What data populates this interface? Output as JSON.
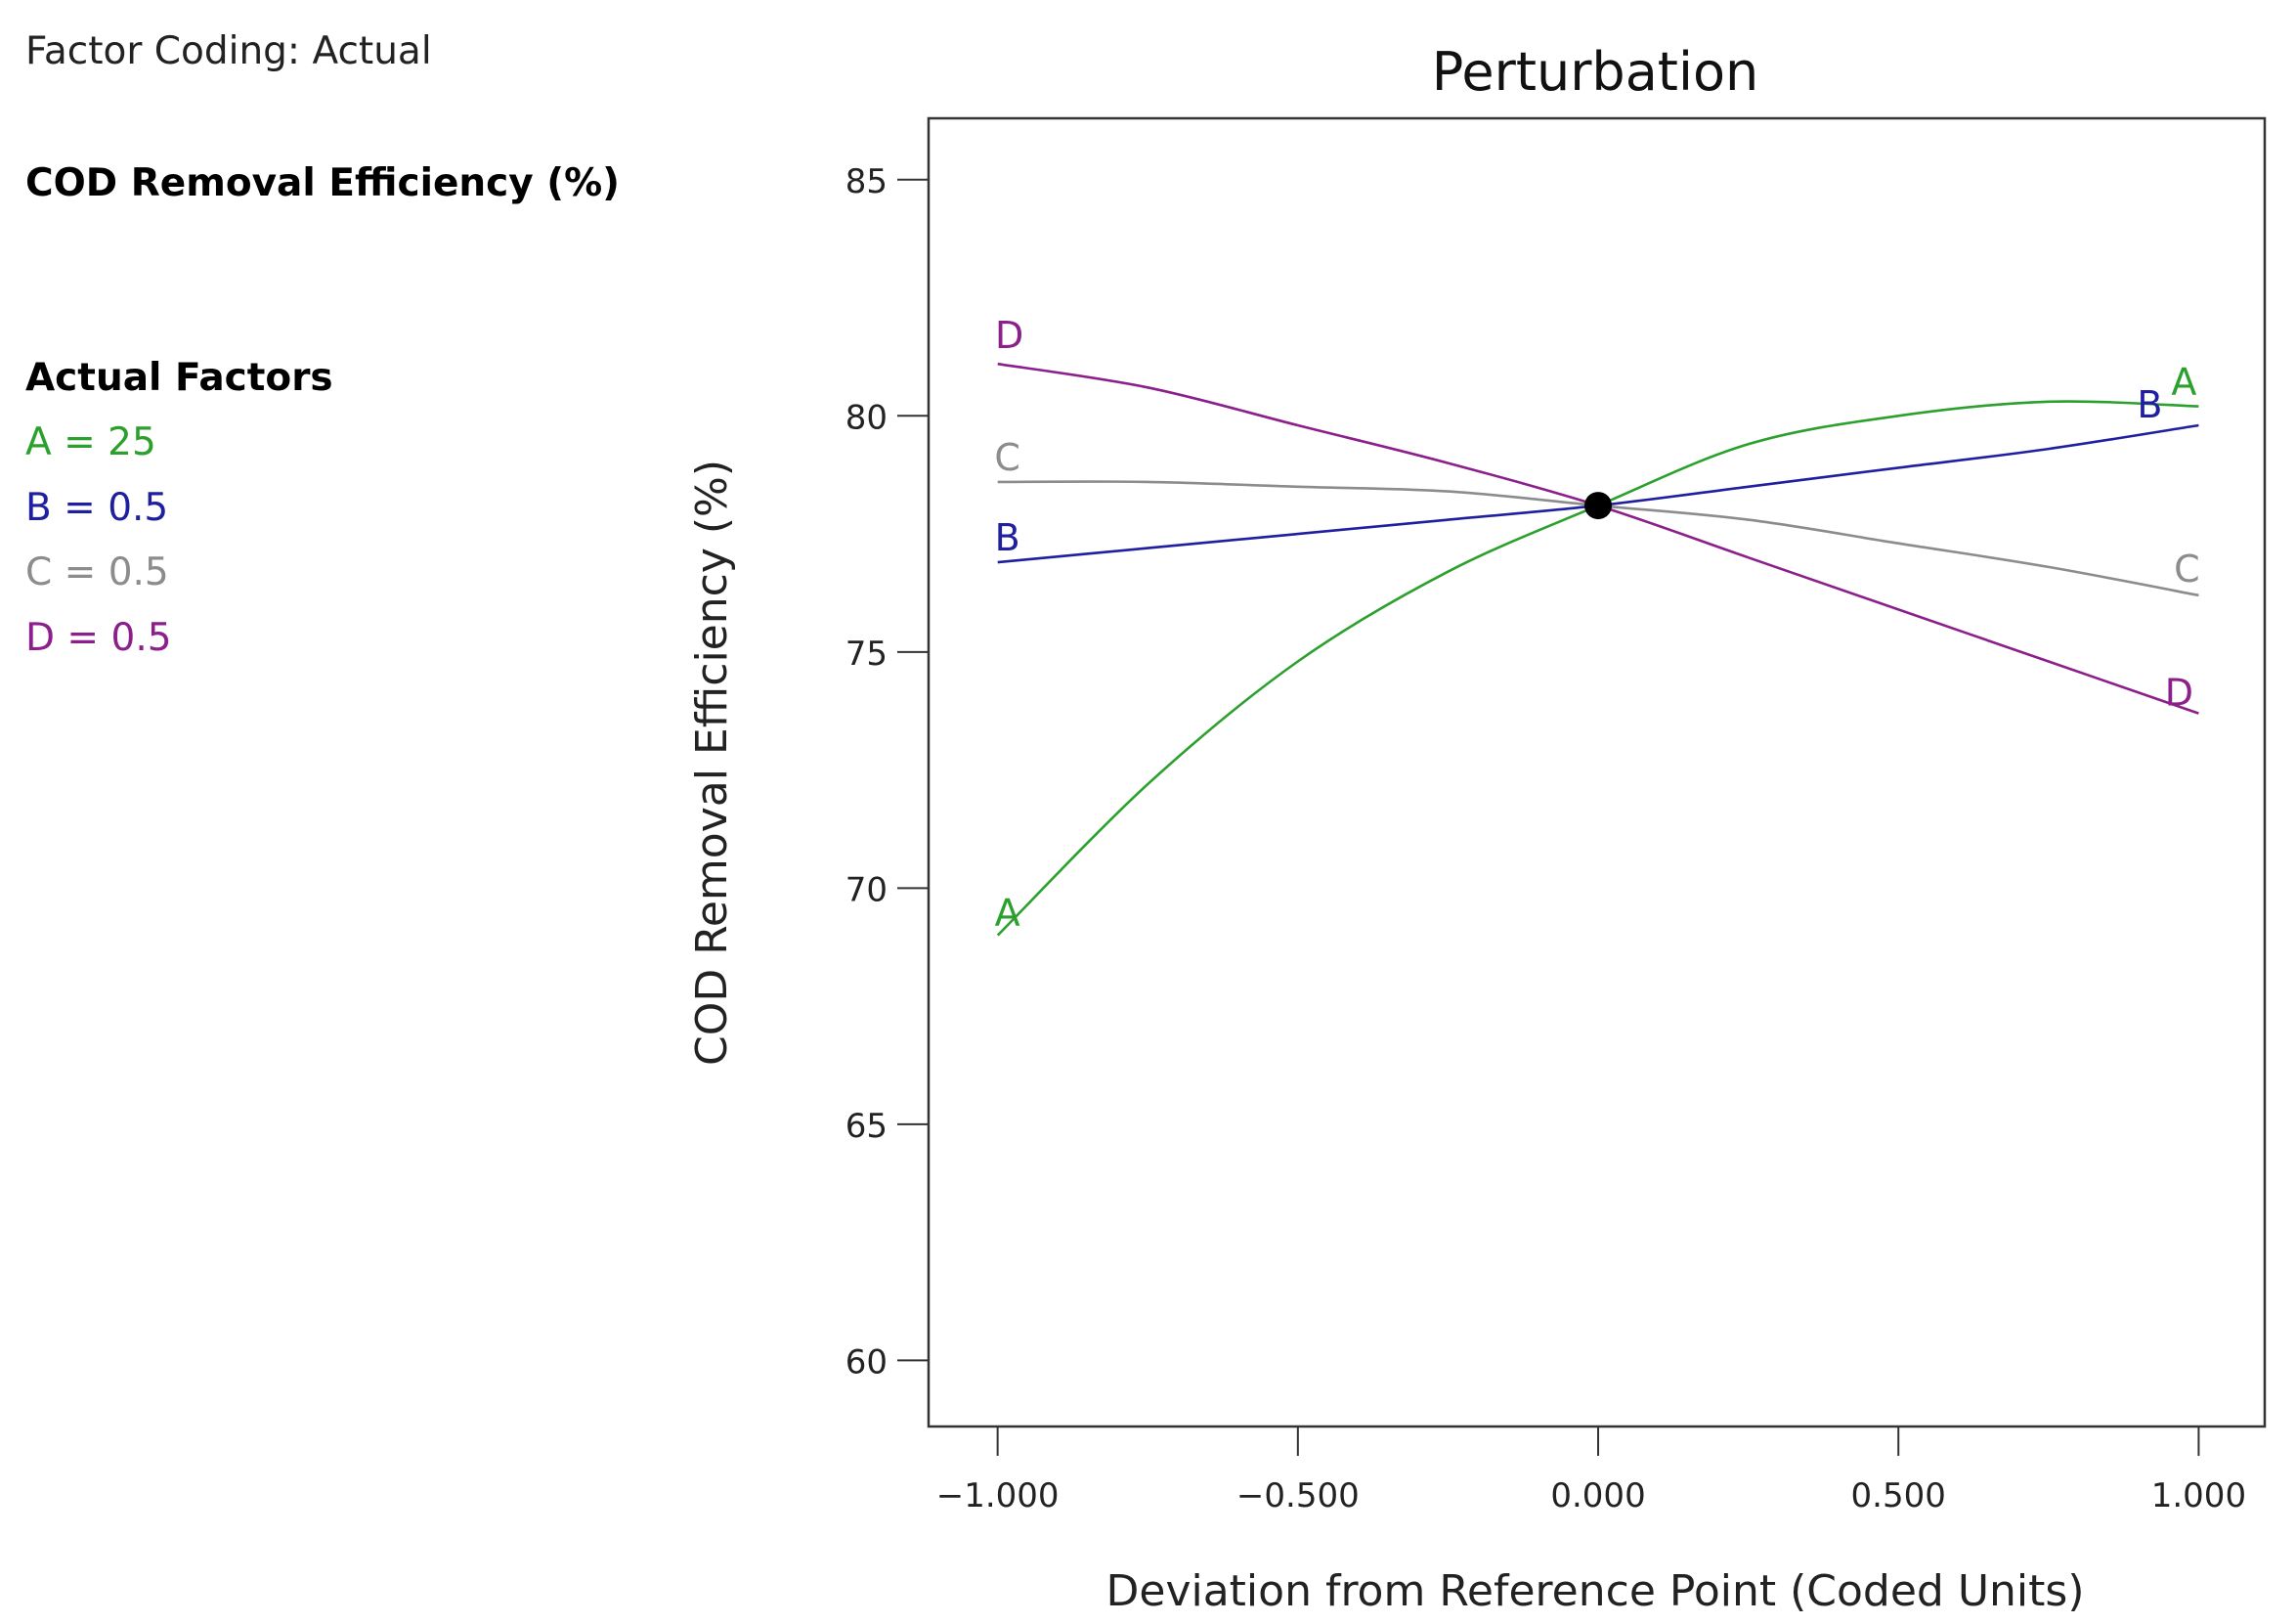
{
  "sidebar": {
    "factor_coding": "Factor Coding: Actual",
    "response": "COD Removal Efficiency (%)",
    "actual_factors_title": "Actual Factors",
    "factors": [
      {
        "text": "A = 25",
        "color": "#2ca02c"
      },
      {
        "text": "B = 0.5",
        "color": "#1f1fa0"
      },
      {
        "text": "C = 0.5",
        "color": "#8c8c8c"
      },
      {
        "text": "D = 0.5",
        "color": "#8b1f8b"
      }
    ]
  },
  "chart_data": {
    "type": "line",
    "title": "Perturbation",
    "xlabel": "Deviation from Reference Point (Coded Units)",
    "ylabel": "COD Removal Efficiency (%)",
    "xlim": [
      -1.115,
      1.11
    ],
    "ylim": [
      58.6,
      86.3
    ],
    "xticks": [
      -1.0,
      -0.5,
      0.0,
      0.5,
      1.0
    ],
    "xtick_labels": [
      "−1.000",
      "−0.500",
      "0.000",
      "0.500",
      "1.000"
    ],
    "yticks": [
      60,
      65,
      70,
      75,
      80,
      85
    ],
    "ytick_labels": [
      "60",
      "65",
      "70",
      "75",
      "80",
      "85"
    ],
    "reference_point": {
      "x": 0.0,
      "y": 78.1
    },
    "x": [
      -1.0,
      -0.75,
      -0.5,
      -0.25,
      0.0,
      0.25,
      0.5,
      0.75,
      1.0
    ],
    "series": [
      {
        "name": "A",
        "color": "#2ca02c",
        "values": [
          69.0,
          72.2,
          74.8,
          76.7,
          78.1,
          79.4,
          80.0,
          80.3,
          80.2
        ]
      },
      {
        "name": "B",
        "color": "#1f1fa0",
        "values": [
          76.9,
          77.2,
          77.5,
          77.8,
          78.1,
          78.5,
          78.9,
          79.3,
          79.8
        ]
      },
      {
        "name": "C",
        "color": "#8c8c8c",
        "values": [
          78.6,
          78.6,
          78.5,
          78.4,
          78.1,
          77.8,
          77.3,
          76.8,
          76.2
        ]
      },
      {
        "name": "D",
        "color": "#8b1f8b",
        "values": [
          81.1,
          80.6,
          79.8,
          79.0,
          78.1,
          77.0,
          75.9,
          74.8,
          73.7
        ]
      }
    ]
  }
}
